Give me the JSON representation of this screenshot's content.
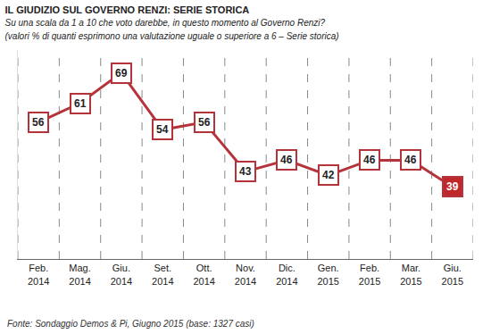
{
  "chart_data": {
    "type": "line",
    "title": "IL GIUDIZIO SUL GOVERNO RENZI: SERIE STORICA",
    "subtitle": [
      "Su una scala da 1 a 10 che voto darebbe, in questo momento al Governo Renzi?",
      "(valori % di quanti esprimono una valutazione uguale o superiore a 6 – Serie storica)"
    ],
    "source": "Fonte: Sondaggio Demos & Pi, Giugno 2015 (base: 1327 casi)",
    "categories": [
      "Feb. 2014",
      "Mag. 2014",
      "Giu. 2014",
      "Set. 2014",
      "Ott. 2014",
      "Nov. 2014",
      "Dic. 2014",
      "Gen. 2015",
      "Feb. 2015",
      "Mar. 2015",
      "Giu. 2015"
    ],
    "values": [
      56,
      61,
      69,
      54,
      56,
      43,
      46,
      42,
      46,
      46,
      39
    ],
    "color": "#b5333a",
    "colors": [
      "#ffffff",
      "#ffffff",
      "#ffffff",
      "#ffffff",
      "#ffffff",
      "#ffffff",
      "#ffffff",
      "#ffffff",
      "#ffffff",
      "#ffffff",
      "#c0272d"
    ],
    "marker": "square",
    "ylim": [
      20,
      75
    ],
    "yticks": [],
    "grid": true,
    "data_labels": true,
    "tick_labels": "x"
  }
}
